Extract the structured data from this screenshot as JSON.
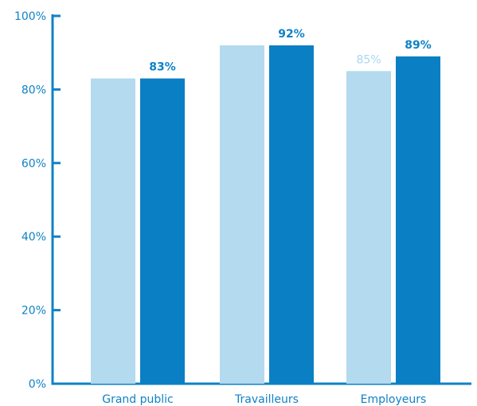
{
  "chart_data": {
    "type": "bar",
    "title": "",
    "xlabel": "",
    "ylabel": "",
    "ylim": [
      0,
      100
    ],
    "yticks": [
      "0%",
      "20%",
      "40%",
      "60%",
      "80%",
      "100%"
    ],
    "categories": [
      "Grand public",
      "Travailleurs",
      "Employeurs"
    ],
    "series": [
      {
        "values": [
          83,
          92,
          85
        ],
        "labels": [
          "",
          "",
          "85%"
        ],
        "color": "#b3daee"
      },
      {
        "values": [
          83,
          92,
          89
        ],
        "labels": [
          "83%",
          "92%",
          "89%"
        ],
        "color": "#0b7fc4"
      }
    ],
    "grid": false,
    "legend": "none",
    "axis_color": "#0f82c6"
  }
}
